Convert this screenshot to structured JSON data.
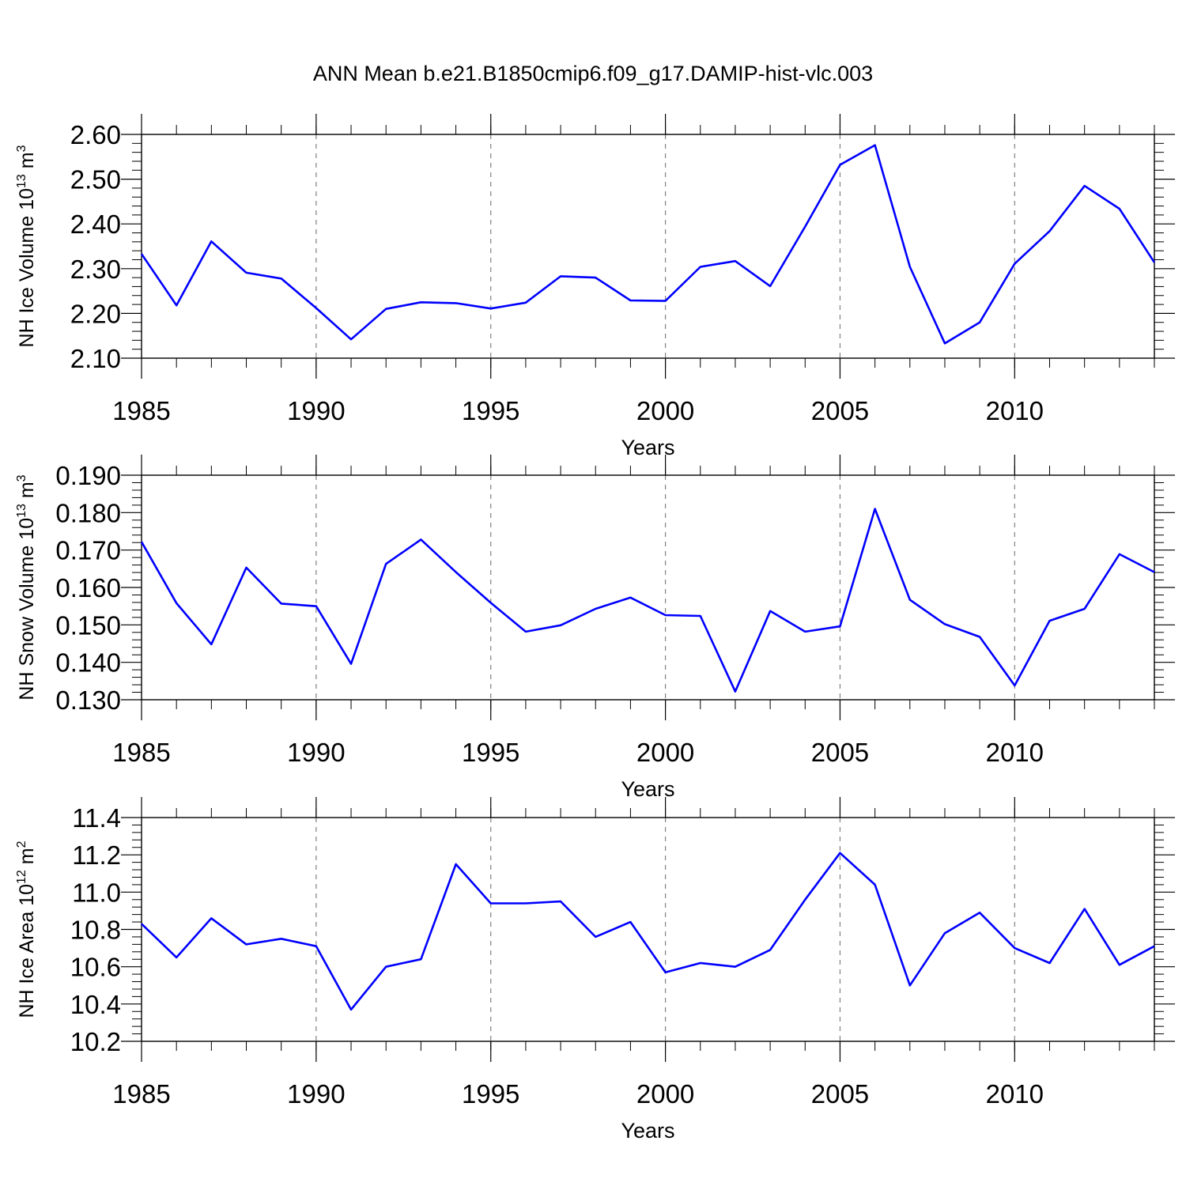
{
  "title": "ANN Mean b.e21.B1850cmip6.f09_g17.DAMIP-hist-vlc.003",
  "colors": {
    "line": "#0000ff",
    "axis": "#000000",
    "grid": "#808080"
  },
  "chart_data": [
    {
      "type": "line",
      "xlabel": "Years",
      "ylabel": {
        "text": "NH Ice Volume 10",
        "sup": "13",
        "unit": " m",
        "unit_sup": "3"
      },
      "xlim": [
        1985,
        2014
      ],
      "ylim": [
        2.1,
        2.6
      ],
      "x_ticks": [
        1985,
        1990,
        1995,
        2000,
        2005,
        2010
      ],
      "y_ticks": [
        "2.10",
        "2.20",
        "2.30",
        "2.40",
        "2.50",
        "2.60"
      ],
      "grid": "dashed vertical at major x ticks",
      "x": [
        1985,
        1986,
        1987,
        1988,
        1989,
        1990,
        1991,
        1992,
        1993,
        1994,
        1995,
        1996,
        1997,
        1998,
        1999,
        2000,
        2001,
        2002,
        2003,
        2004,
        2005,
        2006,
        2007,
        2008,
        2009,
        2010,
        2011,
        2012,
        2013,
        2014
      ],
      "values": [
        2.333,
        2.218,
        2.361,
        2.291,
        2.278,
        2.212,
        2.142,
        2.21,
        2.225,
        2.223,
        2.211,
        2.224,
        2.283,
        2.28,
        2.229,
        2.228,
        2.304,
        2.317,
        2.261,
        2.394,
        2.532,
        2.576,
        2.304,
        2.133,
        2.18,
        2.311,
        2.384,
        2.485,
        2.434,
        2.314
      ]
    },
    {
      "type": "line",
      "xlabel": "Years",
      "ylabel": {
        "text": "NH Snow Volume 10",
        "sup": "13",
        "unit": " m",
        "unit_sup": "3"
      },
      "xlim": [
        1985,
        2014
      ],
      "ylim": [
        0.13,
        0.19
      ],
      "x_ticks": [
        1985,
        1990,
        1995,
        2000,
        2005,
        2010
      ],
      "y_ticks": [
        "0.130",
        "0.140",
        "0.150",
        "0.160",
        "0.170",
        "0.180",
        "0.190"
      ],
      "grid": "dashed vertical at major x ticks",
      "x": [
        1985,
        1986,
        1987,
        1988,
        1989,
        1990,
        1991,
        1992,
        1993,
        1994,
        1995,
        1996,
        1997,
        1998,
        1999,
        2000,
        2001,
        2002,
        2003,
        2004,
        2005,
        2006,
        2007,
        2008,
        2009,
        2010,
        2011,
        2012,
        2013,
        2014
      ],
      "values": [
        0.1722,
        0.1558,
        0.1448,
        0.1653,
        0.1557,
        0.155,
        0.1396,
        0.1663,
        0.1728,
        0.1641,
        0.1559,
        0.1482,
        0.1499,
        0.1543,
        0.1573,
        0.1526,
        0.1524,
        0.1322,
        0.1537,
        0.1482,
        0.1496,
        0.181,
        0.1567,
        0.1502,
        0.1468,
        0.1338,
        0.1511,
        0.1543,
        0.1689,
        0.1641
      ]
    },
    {
      "type": "line",
      "xlabel": "Years",
      "ylabel": {
        "text": "NH Ice Area 10",
        "sup": "12",
        "unit": " m",
        "unit_sup": "2"
      },
      "xlim": [
        1985,
        2014
      ],
      "ylim": [
        10.2,
        11.4
      ],
      "x_ticks": [
        1985,
        1990,
        1995,
        2000,
        2005,
        2010
      ],
      "y_ticks": [
        "10.2",
        "10.4",
        "10.6",
        "10.8",
        "11.0",
        "11.2",
        "11.4"
      ],
      "grid": "dashed vertical at major x ticks",
      "x": [
        1985,
        1986,
        1987,
        1988,
        1989,
        1990,
        1991,
        1992,
        1993,
        1994,
        1995,
        1996,
        1997,
        1998,
        1999,
        2000,
        2001,
        2002,
        2003,
        2004,
        2005,
        2006,
        2007,
        2008,
        2009,
        2010,
        2011,
        2012,
        2013,
        2014
      ],
      "values": [
        10.83,
        10.65,
        10.86,
        10.72,
        10.75,
        10.71,
        10.37,
        10.6,
        10.64,
        11.15,
        10.94,
        10.94,
        10.95,
        10.76,
        10.84,
        10.57,
        10.62,
        10.6,
        10.69,
        10.96,
        11.21,
        11.04,
        10.5,
        10.78,
        10.89,
        10.7,
        10.62,
        10.91,
        10.61,
        10.71
      ]
    }
  ]
}
